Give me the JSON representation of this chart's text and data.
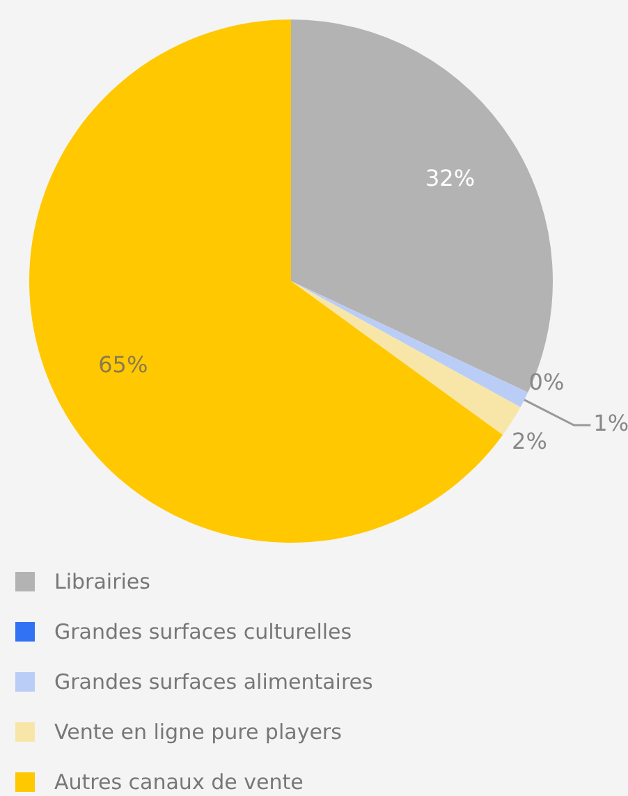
{
  "chart_data": {
    "type": "pie",
    "categories": [
      "Librairies",
      "Grandes surfaces culturelles",
      "Grandes surfaces alimentaires",
      "Vente en ligne pure players",
      "Autres canaux de vente"
    ],
    "values": [
      32,
      0,
      1,
      2,
      65
    ],
    "colors": [
      "#b3b3b3",
      "#3172f5",
      "#b9cdf7",
      "#f8e6a8",
      "#ffc800"
    ],
    "value_labels": [
      "32%",
      "0%",
      "1%",
      "2%",
      "65%"
    ],
    "legend": "bottom"
  }
}
